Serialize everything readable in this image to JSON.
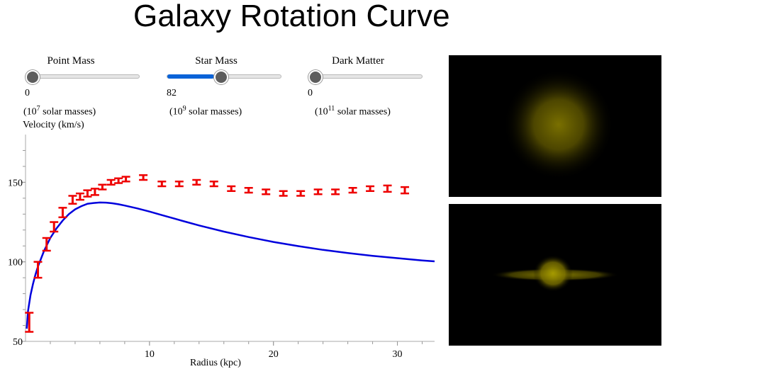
{
  "title": "Galaxy Rotation Curve",
  "sliders": [
    {
      "label": "Point Mass",
      "value": "0",
      "fraction": 0.0,
      "unit_prefix": "(10",
      "unit_exp": "7",
      "unit_suffix": " solar masses)"
    },
    {
      "label": "Star Mass",
      "value": "82",
      "fraction": 0.41,
      "unit_prefix": "(10",
      "unit_exp": "9",
      "unit_suffix": " solar masses)"
    },
    {
      "label": "Dark Matter",
      "value": "0",
      "fraction": 0.0,
      "unit_prefix": "(10",
      "unit_exp": "11",
      "unit_suffix": " solar masses)"
    }
  ],
  "colors": {
    "accent": "#0a63d8",
    "model_curve": "#0000dd",
    "observed": "#ee0000",
    "galaxy_glow": "#8a8000"
  },
  "chart_data": {
    "type": "line",
    "ylabel": "Velocity (km/s)",
    "xlabel": "Radius (kpc)",
    "xlim": [
      0,
      33
    ],
    "ylim": [
      50,
      180
    ],
    "xticks": [
      10,
      20,
      30
    ],
    "yticks": [
      50,
      100,
      150
    ],
    "observed": {
      "x": [
        0.3,
        1.0,
        1.7,
        2.3,
        3.0,
        3.8,
        4.4,
        5.0,
        5.6,
        6.2,
        6.9,
        7.5,
        8.1,
        9.5,
        11.0,
        12.4,
        13.8,
        15.2,
        16.6,
        18.0,
        19.4,
        20.8,
        22.2,
        23.6,
        25.0,
        26.4,
        27.8,
        29.2,
        30.6
      ],
      "y": [
        62,
        95,
        111,
        122,
        131,
        139,
        141,
        143,
        144,
        147,
        150,
        151,
        152,
        153,
        149,
        149,
        150,
        149,
        146,
        145,
        144,
        143,
        143,
        144,
        144,
        145,
        146,
        146,
        145
      ],
      "err": [
        6,
        5,
        4,
        3,
        3,
        2.5,
        2,
        2,
        2,
        1.5,
        1.5,
        1.5,
        1.5,
        1.5,
        1.5,
        1.5,
        1.5,
        1.5,
        1.5,
        1.5,
        1.5,
        1.5,
        1.5,
        1.5,
        1.5,
        1.5,
        1.5,
        2,
        2
      ]
    },
    "model": {
      "x": [
        0.1,
        0.2,
        0.4,
        0.6,
        0.8,
        1.0,
        1.5,
        2.0,
        2.5,
        3.0,
        3.5,
        4.0,
        4.5,
        5.0,
        5.5,
        6.0,
        6.5,
        7.0,
        7.5,
        8.0,
        9.0,
        10.0,
        11.0,
        12.0,
        13.0,
        14.0,
        16.0,
        18.0,
        20.0,
        22.0,
        24.0,
        26.0,
        28.0,
        30.0,
        32.0,
        33.0
      ],
      "y": [
        58,
        69,
        79,
        86,
        92,
        97,
        107,
        115,
        121,
        126,
        130,
        133,
        135,
        136.5,
        137,
        137.3,
        137.2,
        136.8,
        136.2,
        135.4,
        133.6,
        131.6,
        129.4,
        127.2,
        125,
        122.9,
        119,
        115.6,
        112.5,
        109.9,
        107.5,
        105.5,
        103.8,
        102.3,
        100.9,
        100.3
      ]
    }
  }
}
